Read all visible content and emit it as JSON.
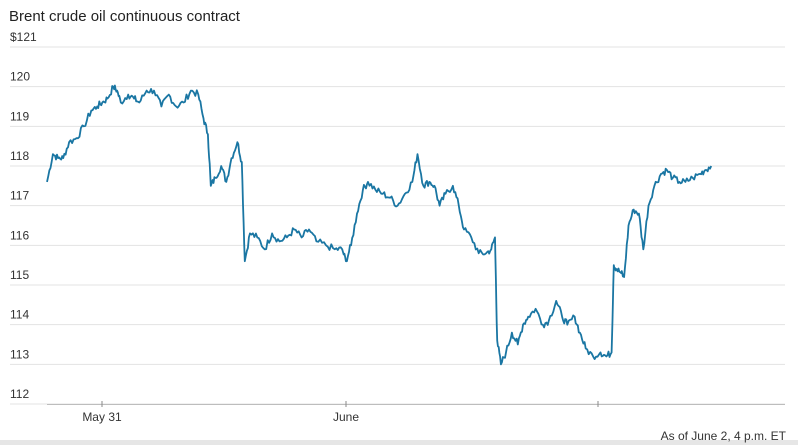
{
  "chart_data": {
    "type": "line",
    "title": "Brent crude oil continuous contract",
    "footnote": "As of June 2, 4 p.m. ET",
    "xlabel": "",
    "ylabel": "",
    "ylim": [
      112,
      121
    ],
    "yticks": [
      "$121",
      "120",
      "119",
      "118",
      "117",
      "116",
      "115",
      "114",
      "113",
      "112"
    ],
    "xticks": [
      "May 31",
      "June"
    ],
    "grid": true,
    "series": [
      {
        "color": "#1a76a3",
        "points": [
          [
            0.0,
            117.6
          ],
          [
            0.008,
            118.3
          ],
          [
            0.015,
            118.2
          ],
          [
            0.022,
            118.2
          ],
          [
            0.03,
            118.6
          ],
          [
            0.04,
            118.7
          ],
          [
            0.05,
            119.0
          ],
          [
            0.06,
            119.4
          ],
          [
            0.068,
            119.5
          ],
          [
            0.075,
            119.6
          ],
          [
            0.082,
            119.7
          ],
          [
            0.09,
            120.0
          ],
          [
            0.095,
            119.9
          ],
          [
            0.1,
            119.6
          ],
          [
            0.11,
            119.8
          ],
          [
            0.118,
            119.7
          ],
          [
            0.125,
            119.6
          ],
          [
            0.135,
            119.9
          ],
          [
            0.145,
            119.9
          ],
          [
            0.155,
            119.5
          ],
          [
            0.165,
            119.8
          ],
          [
            0.175,
            119.5
          ],
          [
            0.185,
            119.6
          ],
          [
            0.195,
            119.9
          ],
          [
            0.205,
            119.8
          ],
          [
            0.212,
            119.2
          ],
          [
            0.218,
            118.8
          ],
          [
            0.222,
            117.5
          ],
          [
            0.228,
            117.7
          ],
          [
            0.236,
            118.0
          ],
          [
            0.243,
            117.6
          ],
          [
            0.25,
            118.2
          ],
          [
            0.258,
            118.6
          ],
          [
            0.264,
            118.1
          ],
          [
            0.268,
            115.6
          ],
          [
            0.275,
            116.3
          ],
          [
            0.285,
            116.2
          ],
          [
            0.295,
            115.9
          ],
          [
            0.305,
            116.3
          ],
          [
            0.315,
            116.1
          ],
          [
            0.325,
            116.2
          ],
          [
            0.335,
            116.4
          ],
          [
            0.345,
            116.2
          ],
          [
            0.355,
            116.4
          ],
          [
            0.365,
            116.1
          ],
          [
            0.378,
            116.0
          ],
          [
            0.39,
            115.9
          ],
          [
            0.4,
            115.9
          ],
          [
            0.405,
            115.6
          ],
          [
            0.412,
            116.0
          ],
          [
            0.42,
            116.8
          ],
          [
            0.428,
            117.4
          ],
          [
            0.435,
            117.6
          ],
          [
            0.445,
            117.4
          ],
          [
            0.455,
            117.3
          ],
          [
            0.465,
            117.2
          ],
          [
            0.475,
            117.0
          ],
          [
            0.485,
            117.3
          ],
          [
            0.495,
            117.6
          ],
          [
            0.502,
            118.3
          ],
          [
            0.51,
            117.5
          ],
          [
            0.518,
            117.6
          ],
          [
            0.525,
            117.5
          ],
          [
            0.532,
            117.0
          ],
          [
            0.54,
            117.3
          ],
          [
            0.55,
            117.5
          ],
          [
            0.558,
            117.0
          ],
          [
            0.565,
            116.4
          ],
          [
            0.575,
            116.2
          ],
          [
            0.585,
            115.8
          ],
          [
            0.595,
            115.8
          ],
          [
            0.602,
            115.9
          ],
          [
            0.607,
            116.2
          ],
          [
            0.61,
            113.6
          ],
          [
            0.615,
            113.0
          ],
          [
            0.622,
            113.3
          ],
          [
            0.63,
            113.8
          ],
          [
            0.638,
            113.5
          ],
          [
            0.645,
            114.0
          ],
          [
            0.652,
            114.2
          ],
          [
            0.662,
            114.4
          ],
          [
            0.672,
            114.0
          ],
          [
            0.68,
            114.1
          ],
          [
            0.69,
            114.6
          ],
          [
            0.698,
            114.2
          ],
          [
            0.705,
            114.0
          ],
          [
            0.715,
            114.2
          ],
          [
            0.722,
            113.8
          ],
          [
            0.73,
            113.4
          ],
          [
            0.74,
            113.2
          ],
          [
            0.75,
            113.3
          ],
          [
            0.758,
            113.2
          ],
          [
            0.765,
            113.3
          ],
          [
            0.768,
            115.5
          ],
          [
            0.772,
            115.4
          ],
          [
            0.778,
            115.3
          ],
          [
            0.782,
            115.2
          ],
          [
            0.788,
            116.5
          ],
          [
            0.795,
            116.9
          ],
          [
            0.802,
            116.8
          ],
          [
            0.808,
            115.9
          ],
          [
            0.815,
            117.0
          ],
          [
            0.823,
            117.5
          ],
          [
            0.832,
            117.8
          ],
          [
            0.84,
            117.9
          ],
          [
            0.848,
            117.7
          ],
          [
            0.857,
            117.6
          ],
          [
            0.865,
            117.6
          ],
          [
            0.875,
            117.7
          ],
          [
            0.885,
            117.8
          ],
          [
            0.892,
            117.9
          ],
          [
            0.9,
            118.0
          ]
        ]
      }
    ]
  }
}
